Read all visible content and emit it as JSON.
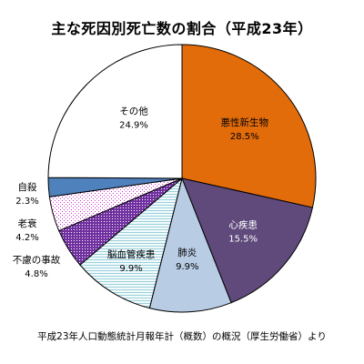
{
  "chart_data": {
    "type": "pie",
    "title": "主な死因別死亡数の割合（平成23年）",
    "source": "平成23年人口動態統計月報年計（概数）の概況（厚生労働省）より",
    "slices": [
      {
        "label": "悪性新生物",
        "value": 28.5,
        "display": "28.5%",
        "color": "#E26B0A",
        "pattern": "solid"
      },
      {
        "label": "心疾患",
        "value": 15.5,
        "display": "15.5%",
        "color": "#5F4A7B",
        "pattern": "solid"
      },
      {
        "label": "肺炎",
        "value": 9.9,
        "display": "9.9%",
        "color": "#B8CCE4",
        "pattern": "solid"
      },
      {
        "label": "脳血管疾患",
        "value": 9.9,
        "display": "9.9%",
        "color": "#DAEEF3",
        "pattern": "hlines"
      },
      {
        "label": "不慮の事故",
        "value": 4.8,
        "display": "4.8%",
        "color": "#7030A0",
        "pattern": "dots-dense"
      },
      {
        "label": "老衰",
        "value": 4.2,
        "display": "4.2%",
        "color": "#F2B8F0",
        "pattern": "dots-sparse"
      },
      {
        "label": "自殺",
        "value": 2.3,
        "display": "2.3%",
        "color": "#4F81BD",
        "pattern": "solid"
      },
      {
        "label": "その他",
        "value": 24.9,
        "display": "24.9%",
        "color": "#FFFFFF",
        "pattern": "solid"
      }
    ],
    "start_angle_deg": 0,
    "direction": "clockwise",
    "legend": "none"
  }
}
